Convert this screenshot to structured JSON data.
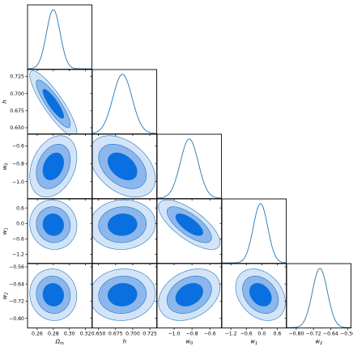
{
  "chart_data": {
    "type": "corner",
    "title": "",
    "parameters": [
      {
        "label": "Ω_m",
        "mean": 0.28,
        "sigma": 0.0085,
        "range": [
          0.248,
          0.328
        ],
        "ticks": [
          0.26,
          0.28,
          0.3,
          0.32
        ],
        "tick_labels": [
          "0.26",
          "0.28",
          "0.30",
          "0.32"
        ]
      },
      {
        "label": "h",
        "mean": 0.685,
        "sigma": 0.014,
        "range": [
          0.641,
          0.735
        ],
        "ticks": [
          0.65,
          0.675,
          0.7,
          0.725
        ],
        "tick_labels": [
          "0.650",
          "0.675",
          "0.700",
          "0.725"
        ]
      },
      {
        "label": "w_0",
        "mean": -0.83,
        "sigma": 0.1,
        "range": [
          -1.19,
          -0.47
        ],
        "ticks": [
          -1.0,
          -0.8,
          -0.6
        ],
        "tick_labels": [
          "−1.0",
          "−0.8",
          "−0.6"
        ]
      },
      {
        "label": "w_1",
        "mean": -0.05,
        "sigma": 0.28,
        "range": [
          -1.55,
          0.95
        ],
        "ticks": [
          -1.2,
          -0.6,
          0.0,
          0.6
        ],
        "tick_labels": [
          "−1.2",
          "−0.6",
          "0.0",
          "0.6"
        ]
      },
      {
        "label": "w_2",
        "mean": -0.69,
        "sigma": 0.035,
        "range": [
          -0.845,
          -0.545
        ],
        "ticks": [
          -0.8,
          -0.72,
          -0.64,
          -0.56
        ],
        "tick_labels": [
          "−0.80",
          "−0.72",
          "−0.64",
          "−0.56"
        ]
      }
    ],
    "correlations": [
      [
        1,
        -0.87,
        0.3,
        -0.05,
        -0.05
      ],
      [
        -0.87,
        1,
        -0.4,
        0.05,
        0.05
      ],
      [
        0.3,
        -0.4,
        1,
        -0.72,
        0.3
      ],
      [
        -0.05,
        0.05,
        -0.72,
        1,
        -0.3
      ],
      [
        -0.05,
        0.05,
        0.3,
        -0.3,
        1
      ]
    ],
    "contour_levels_sigma": [
      1,
      2,
      3
    ],
    "colors": {
      "line": "#1f77b4",
      "fill_1sigma": "#0a6fe0",
      "fill_2sigma": "#8bb7ee",
      "fill_3sigma": "#d4e4f8",
      "frame": "#000000"
    }
  }
}
